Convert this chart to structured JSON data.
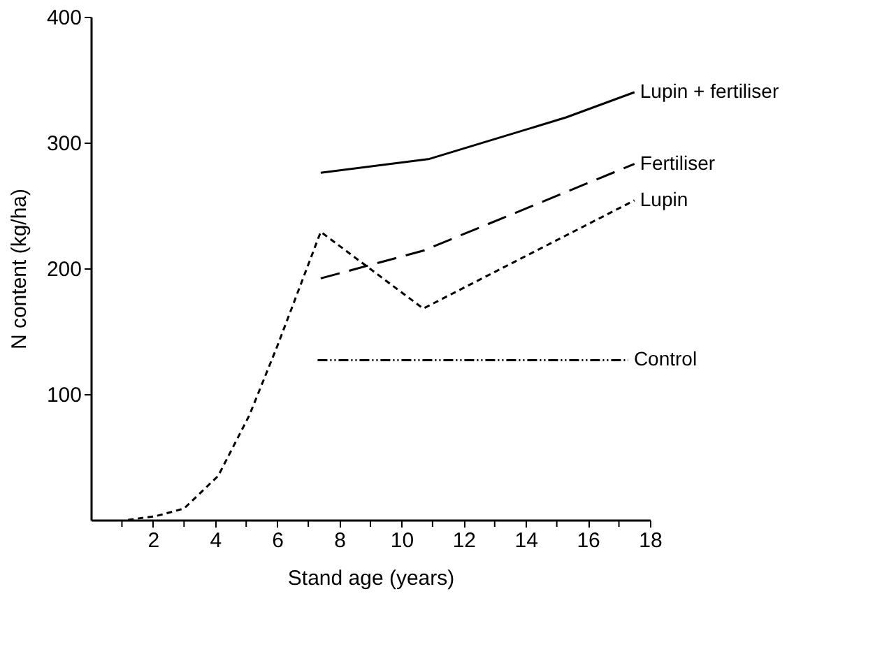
{
  "chart_data": {
    "type": "line",
    "xlabel": "Stand age (years)",
    "ylabel": "N content (kg/ha)",
    "xlim": [
      0,
      18
    ],
    "ylim": [
      0,
      400
    ],
    "xticks": [
      {
        "value": 1,
        "label": null
      },
      2,
      {
        "value": 3,
        "label": null
      },
      4,
      {
        "value": 5,
        "label": null
      },
      6,
      {
        "value": 7,
        "label": null
      },
      8,
      {
        "value": 9,
        "label": null
      },
      10,
      {
        "value": 11,
        "label": null
      },
      12,
      {
        "value": 13,
        "label": null
      },
      14,
      {
        "value": 15,
        "label": null
      },
      16,
      {
        "value": 17,
        "label": null
      },
      18
    ],
    "yticks": [
      100,
      200,
      300,
      400
    ],
    "grid": false,
    "legend": false,
    "marker": "none",
    "series": [
      {
        "name": "Lupin + fertiliser",
        "color": "#000000",
        "line_style": "solid",
        "x": [
          7.4,
          10.9,
          15.3,
          17.5
        ],
        "values": [
          276,
          287,
          320,
          340
        ]
      },
      {
        "name": "Fertiliser",
        "color": "#000000",
        "line_style": "dashed",
        "x": [
          7.4,
          10.7,
          17.5
        ],
        "values": [
          192,
          214,
          283
        ]
      },
      {
        "name": "Lupin",
        "color": "#000000",
        "line_style": "dotted",
        "x": [
          1.2,
          2.1,
          3.0,
          4.1,
          5.1,
          6.0,
          7.4,
          10.7,
          17.5
        ],
        "values": [
          0,
          3,
          9,
          35,
          83,
          138,
          229,
          168,
          254
        ]
      },
      {
        "name": "Control",
        "color": "#000000",
        "line_style": "dashdot",
        "x": [
          7.3,
          17.3
        ],
        "values": [
          127,
          127
        ]
      }
    ]
  }
}
